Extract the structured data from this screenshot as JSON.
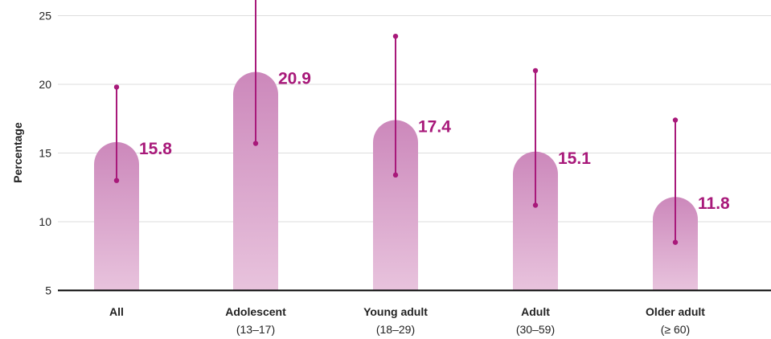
{
  "chart_data": {
    "type": "bar",
    "ylabel": "Percentage",
    "ylim": [
      5,
      26
    ],
    "yticks": [
      5,
      10,
      15,
      20,
      25
    ],
    "grid": true,
    "categories": [
      {
        "label": "All",
        "sublabel": ""
      },
      {
        "label": "Adolescent",
        "sublabel": "(13–17)"
      },
      {
        "label": "Young adult",
        "sublabel": "(18–29)"
      },
      {
        "label": "Adult",
        "sublabel": "(30–59)"
      },
      {
        "label": "Older adult",
        "sublabel": "(≥ 60)"
      }
    ],
    "values": [
      15.8,
      20.9,
      17.4,
      15.1,
      11.8
    ],
    "value_labels": [
      "15.8",
      "20.9",
      "17.4",
      "15.1",
      "11.8"
    ],
    "ci_low": [
      13.0,
      15.7,
      13.4,
      11.2,
      8.5
    ],
    "ci_high": [
      19.8,
      27.5,
      23.5,
      21.0,
      17.4
    ],
    "colors": {
      "bar_top": "#cc88bb",
      "bar_bottom": "#e8c3dd",
      "error_bar": "#a8197a",
      "value_text": "#a8197a",
      "grid": "#dddddd",
      "axis": "#000000"
    }
  }
}
